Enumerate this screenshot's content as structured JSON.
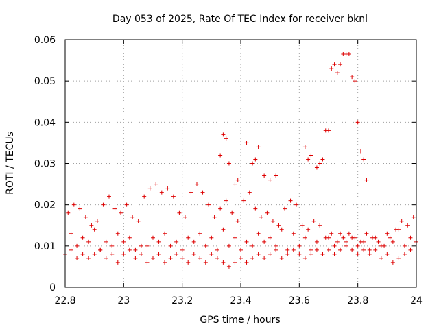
{
  "chart_data": {
    "type": "scatter",
    "title": "Day 053 of 2025, Rate Of TEC Index for receiver bknl",
    "xlabel": "GPS time / hours",
    "ylabel": "ROTI / TECUs",
    "xlim": [
      22.8,
      24.0
    ],
    "ylim": [
      0.0,
      0.06
    ],
    "x_ticks": [
      "22.8",
      "23",
      "23.2",
      "23.4",
      "23.6",
      "23.8",
      "24"
    ],
    "y_ticks": [
      "0",
      "0.01",
      "0.02",
      "0.03",
      "0.04",
      "0.05",
      "0.06"
    ],
    "x_tick_values": [
      22.8,
      23.0,
      23.2,
      23.4,
      23.6,
      23.8,
      24.0
    ],
    "y_tick_values": [
      0.0,
      0.01,
      0.02,
      0.03,
      0.04,
      0.05,
      0.06
    ],
    "grid": true,
    "marker": "plus",
    "marker_color": "#dd0000",
    "series": [
      {
        "x": [
          22.81,
          22.83,
          22.85,
          22.87,
          22.89,
          22.91,
          22.93,
          22.95,
          22.97,
          22.99,
          23.01,
          23.03,
          23.05,
          23.07,
          23.09,
          23.11,
          23.13,
          23.15,
          23.17,
          23.19,
          23.21,
          23.23,
          23.25,
          23.27,
          23.29,
          23.31,
          23.33,
          23.35,
          23.37,
          23.39,
          23.41,
          23.43,
          23.45,
          23.47,
          23.49,
          23.51,
          23.53,
          23.55,
          23.57,
          23.59,
          23.61,
          23.63,
          23.65,
          23.67,
          23.69,
          23.71,
          23.73,
          23.75,
          23.77,
          23.79,
          23.81,
          23.83,
          23.85,
          23.87,
          23.89,
          23.91,
          23.93,
          23.95,
          23.97,
          23.99,
          22.82,
          22.86,
          22.9,
          22.94,
          22.98,
          23.02,
          23.06,
          23.1,
          23.14,
          23.18,
          23.22,
          23.26,
          23.3,
          23.34,
          23.38,
          23.42,
          23.46,
          23.5,
          23.54,
          23.58,
          23.62,
          23.66,
          23.7,
          23.74,
          23.78,
          23.82,
          23.86,
          23.9,
          23.94,
          23.98,
          22.84,
          22.88,
          22.92,
          22.96,
          23.0,
          23.04,
          23.08,
          23.12,
          23.16,
          23.2,
          23.24,
          23.28,
          23.32,
          23.36,
          23.4,
          23.44,
          23.48,
          23.52,
          23.56,
          23.6,
          23.64,
          23.68,
          23.72,
          23.76,
          23.8,
          23.84,
          23.88,
          23.92,
          23.96,
          24.0,
          22.8,
          22.82,
          22.84,
          22.86,
          22.88,
          22.9,
          22.92,
          22.94,
          22.96,
          22.98,
          23.0,
          23.02,
          23.04,
          23.06,
          23.08,
          23.1,
          23.12,
          23.14,
          23.16,
          23.18,
          23.2,
          23.22,
          23.24,
          23.26,
          23.28,
          23.3,
          23.32,
          23.34,
          23.36,
          23.38,
          23.4,
          23.42,
          23.44,
          23.46,
          23.48,
          23.5,
          23.52,
          23.54,
          23.56,
          23.58,
          23.6,
          23.62,
          23.64,
          23.66,
          23.68,
          23.7,
          23.72,
          23.74,
          23.76,
          23.78,
          23.8,
          23.82,
          23.84,
          23.86,
          23.88,
          23.9,
          23.92,
          23.94,
          23.96,
          23.98,
          23.33,
          23.34,
          23.35,
          23.36,
          23.38,
          23.39,
          23.42,
          23.44,
          23.45,
          23.46,
          23.48,
          23.5,
          23.52,
          23.62,
          23.63,
          23.64,
          23.66,
          23.67,
          23.68,
          23.69,
          23.7,
          23.71,
          23.72,
          23.73,
          23.74,
          23.75,
          23.76,
          23.77,
          23.78,
          23.79,
          23.8,
          23.81,
          23.82,
          23.83
        ],
        "y": [
          0.018,
          0.02,
          0.019,
          0.017,
          0.015,
          0.016,
          0.02,
          0.022,
          0.019,
          0.018,
          0.02,
          0.017,
          0.016,
          0.022,
          0.024,
          0.025,
          0.023,
          0.024,
          0.022,
          0.018,
          0.017,
          0.023,
          0.025,
          0.023,
          0.02,
          0.017,
          0.019,
          0.021,
          0.018,
          0.016,
          0.021,
          0.023,
          0.019,
          0.017,
          0.018,
          0.016,
          0.015,
          0.019,
          0.021,
          0.02,
          0.015,
          0.014,
          0.016,
          0.015,
          0.012,
          0.013,
          0.011,
          0.012,
          0.013,
          0.012,
          0.011,
          0.013,
          0.012,
          0.011,
          0.01,
          0.012,
          0.014,
          0.016,
          0.015,
          0.017,
          0.013,
          0.012,
          0.014,
          0.011,
          0.013,
          0.012,
          0.01,
          0.012,
          0.013,
          0.011,
          0.012,
          0.013,
          0.012,
          0.014,
          0.012,
          0.011,
          0.013,
          0.012,
          0.014,
          0.013,
          0.012,
          0.011,
          0.012,
          0.013,
          0.012,
          0.011,
          0.012,
          0.013,
          0.014,
          0.012,
          0.01,
          0.011,
          0.009,
          0.01,
          0.011,
          0.009,
          0.01,
          0.011,
          0.01,
          0.009,
          0.011,
          0.01,
          0.009,
          0.01,
          0.009,
          0.01,
          0.011,
          0.01,
          0.009,
          0.01,
          0.009,
          0.008,
          0.01,
          0.011,
          0.01,
          0.009,
          0.01,
          0.011,
          0.01,
          0.011,
          0.008,
          0.009,
          0.007,
          0.008,
          0.007,
          0.008,
          0.009,
          0.007,
          0.008,
          0.006,
          0.008,
          0.009,
          0.007,
          0.008,
          0.006,
          0.007,
          0.008,
          0.006,
          0.007,
          0.008,
          0.007,
          0.006,
          0.008,
          0.007,
          0.006,
          0.008,
          0.007,
          0.006,
          0.005,
          0.006,
          0.007,
          0.006,
          0.007,
          0.008,
          0.007,
          0.008,
          0.009,
          0.007,
          0.008,
          0.009,
          0.008,
          0.007,
          0.008,
          0.009,
          0.008,
          0.009,
          0.008,
          0.009,
          0.01,
          0.009,
          0.008,
          0.009,
          0.008,
          0.009,
          0.007,
          0.008,
          0.006,
          0.007,
          0.008,
          0.009,
          0.032,
          0.037,
          0.036,
          0.03,
          0.025,
          0.026,
          0.035,
          0.03,
          0.031,
          0.034,
          0.027,
          0.026,
          0.027,
          0.034,
          0.031,
          0.032,
          0.029,
          0.03,
          0.031,
          0.038,
          0.038,
          0.053,
          0.054,
          0.052,
          0.054,
          0.0565,
          0.0565,
          0.0565,
          0.051,
          0.05,
          0.04,
          0.033,
          0.031,
          0.026
        ]
      }
    ]
  }
}
